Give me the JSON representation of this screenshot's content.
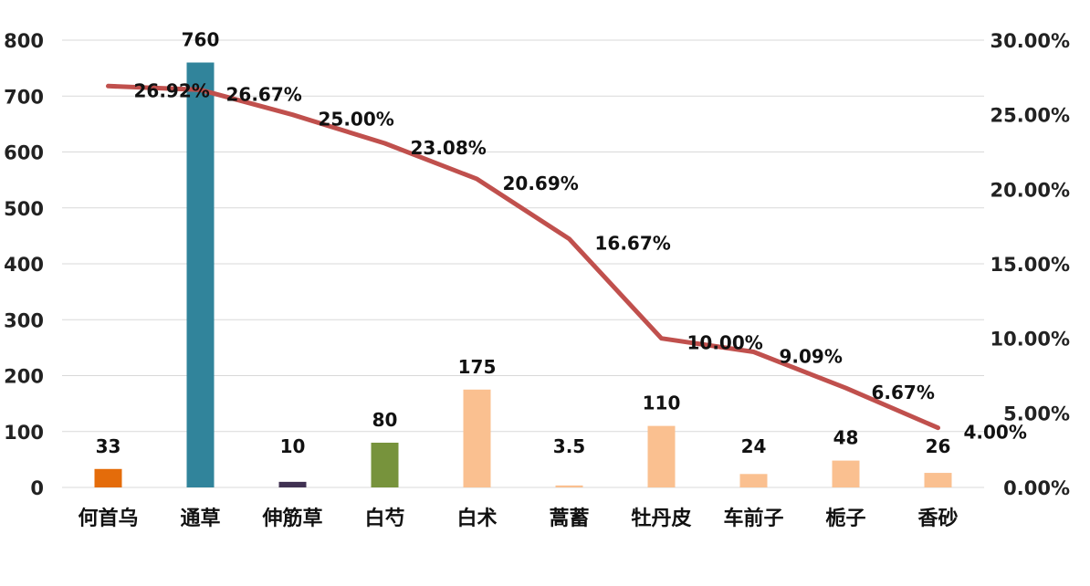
{
  "chart_data": {
    "type": "bar",
    "categories": [
      "何首乌",
      "通草",
      "伸筋草",
      "白芍",
      "白术",
      "蒿蓄",
      "牡丹皮",
      "车前子",
      "栀子",
      "香砂"
    ],
    "series": [
      {
        "type": "bar",
        "values": [
          33,
          760,
          10,
          80,
          175,
          3.5,
          110,
          24,
          48,
          26
        ],
        "value_labels": [
          "33",
          "760",
          "10",
          "80",
          "175",
          "3.5",
          "110",
          "24",
          "48",
          "26"
        ],
        "colors": [
          "#e46c0a",
          "#31849b",
          "#403152",
          "#77933c",
          "#fac090",
          "#fac090",
          "#fac090",
          "#fac090",
          "#fac090",
          "#fac090"
        ],
        "axis": "left"
      },
      {
        "type": "line",
        "values": [
          26.92,
          26.67,
          25.0,
          23.08,
          20.69,
          16.67,
          10.0,
          9.09,
          6.67,
          4.0
        ],
        "value_labels": [
          "26.92%",
          "26.67%",
          "25.00%",
          "23.08%",
          "20.69%",
          "16.67%",
          "10.00%",
          "9.09%",
          "6.67%",
          "4.00%"
        ],
        "color": "#c0504d",
        "axis": "right"
      }
    ],
    "y_left": {
      "range": [
        0,
        800
      ],
      "ticks": [
        "0",
        "100",
        "200",
        "300",
        "400",
        "500",
        "600",
        "700",
        "800"
      ]
    },
    "y_right": {
      "range": [
        0,
        30
      ],
      "ticks": [
        "0.00%",
        "5.00%",
        "10.00%",
        "15.00%",
        "20.00%",
        "25.00%",
        "30.00%"
      ]
    },
    "grid": true,
    "legend": "none",
    "title": "",
    "xlabel": "",
    "ylabel": ""
  }
}
